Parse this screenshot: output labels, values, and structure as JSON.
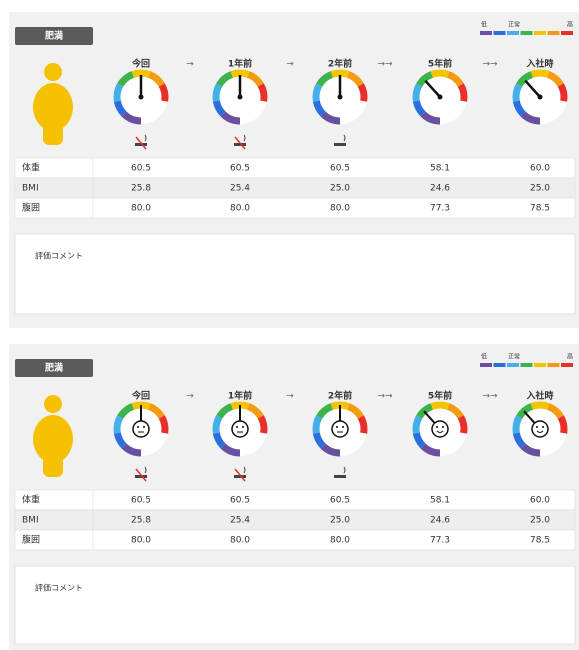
{
  "panels": [
    {
      "tag": "肥満",
      "legend": [
        "低",
        "正常",
        "高"
      ],
      "columns": [
        "今回",
        "1年前",
        "2年前",
        "5年前",
        "入社時"
      ],
      "arrows": [
        "→",
        "→",
        "→→",
        "→→"
      ],
      "rows": [
        {
          "label": "体重",
          "values": [
            "60.5",
            "60.5",
            "60.5",
            "58.1",
            "60.0"
          ]
        },
        {
          "label": "BMI",
          "values": [
            "25.8",
            "25.4",
            "25.0",
            "24.6",
            "25.0"
          ]
        },
        {
          "label": "腹囲",
          "values": [
            "80.0",
            "80.0",
            "80.0",
            "77.3",
            "78.5"
          ]
        }
      ],
      "comment_label": "評価コメント"
    },
    {
      "tag": "肥満",
      "legend": [
        "低",
        "正常",
        "高"
      ],
      "columns": [
        "今回",
        "1年前",
        "2年前",
        "5年前",
        "入社時"
      ],
      "arrows": [
        "→",
        "→",
        "→→",
        "→→"
      ],
      "rows": [
        {
          "label": "体重",
          "values": [
            "60.5",
            "60.5",
            "60.5",
            "58.1",
            "60.0"
          ]
        },
        {
          "label": "BMI",
          "values": [
            "25.8",
            "25.4",
            "25.0",
            "24.6",
            "25.0"
          ]
        },
        {
          "label": "腹囲",
          "values": [
            "80.0",
            "80.0",
            "80.0",
            "77.3",
            "78.5"
          ]
        }
      ],
      "comment_label": "評価コメント"
    }
  ]
}
